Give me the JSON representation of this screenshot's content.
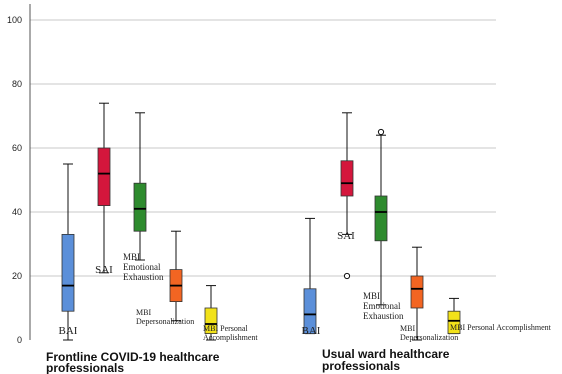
{
  "chart_data": {
    "type": "box",
    "y_axis": {
      "range": [
        0,
        105
      ],
      "ticks": [
        0,
        20,
        40,
        60,
        80,
        100
      ],
      "grid": true
    },
    "groups": [
      {
        "label_lines": [
          "Frontline COVID-19 healthcare",
          "professionals"
        ],
        "boxes": [
          {
            "label_lines": [
              "BAI"
            ],
            "color": "#5b8fd9",
            "stats": {
              "min": 0,
              "q1": 9,
              "median": 17,
              "q3": 33,
              "max": 55
            },
            "outliers": []
          },
          {
            "label_lines": [
              "SAI"
            ],
            "color": "#d4163c",
            "stats": {
              "min": 21,
              "q1": 42,
              "median": 52,
              "q3": 60,
              "max": 74
            },
            "outliers": []
          },
          {
            "label_lines": [
              "MBI",
              "Emotional",
              "Exhaustion"
            ],
            "color": "#2e8b2e",
            "stats": {
              "min": 25,
              "q1": 34,
              "median": 41,
              "q3": 49,
              "max": 71
            },
            "outliers": []
          },
          {
            "label_lines": [
              "MBI",
              "Depersonalization"
            ],
            "color": "#f26522",
            "stats": {
              "min": 6,
              "q1": 12,
              "median": 17,
              "q3": 22,
              "max": 34
            },
            "outliers": []
          },
          {
            "label_lines": [
              "MBI Personal",
              "Accomplishment"
            ],
            "color": "#f2e21a",
            "stats": {
              "min": 0,
              "q1": 2,
              "median": 5,
              "q3": 10,
              "max": 17
            },
            "outliers": []
          }
        ]
      },
      {
        "label_lines": [
          "Usual ward healthcare",
          "professionals"
        ],
        "boxes": [
          {
            "label_lines": [
              "BAI"
            ],
            "color": "#5b8fd9",
            "stats": {
              "min": 2,
              "q1": 2,
              "median": 8,
              "q3": 16,
              "max": 38
            },
            "outliers": []
          },
          {
            "label_lines": [
              "SAI"
            ],
            "color": "#d4163c",
            "stats": {
              "min": 33,
              "q1": 45,
              "median": 49,
              "q3": 56,
              "max": 71
            },
            "outliers": [
              20
            ]
          },
          {
            "label_lines": [
              "MBI",
              "Emotional",
              "Exhaustion"
            ],
            "color": "#2e8b2e",
            "stats": {
              "min": 11,
              "q1": 31,
              "median": 40,
              "q3": 45,
              "max": 64
            },
            "outliers": [
              65
            ]
          },
          {
            "label_lines": [
              "MBI",
              "Depersonalization"
            ],
            "color": "#f26522",
            "stats": {
              "min": 0,
              "q1": 10,
              "median": 16,
              "q3": 20,
              "max": 29
            },
            "outliers": []
          },
          {
            "label_lines": [
              "MBI Personal Accomplishment"
            ],
            "color": "#f2e21a",
            "stats": {
              "min": 2,
              "q1": 2,
              "median": 6,
              "q3": 9,
              "max": 13
            },
            "outliers": []
          }
        ]
      }
    ]
  }
}
